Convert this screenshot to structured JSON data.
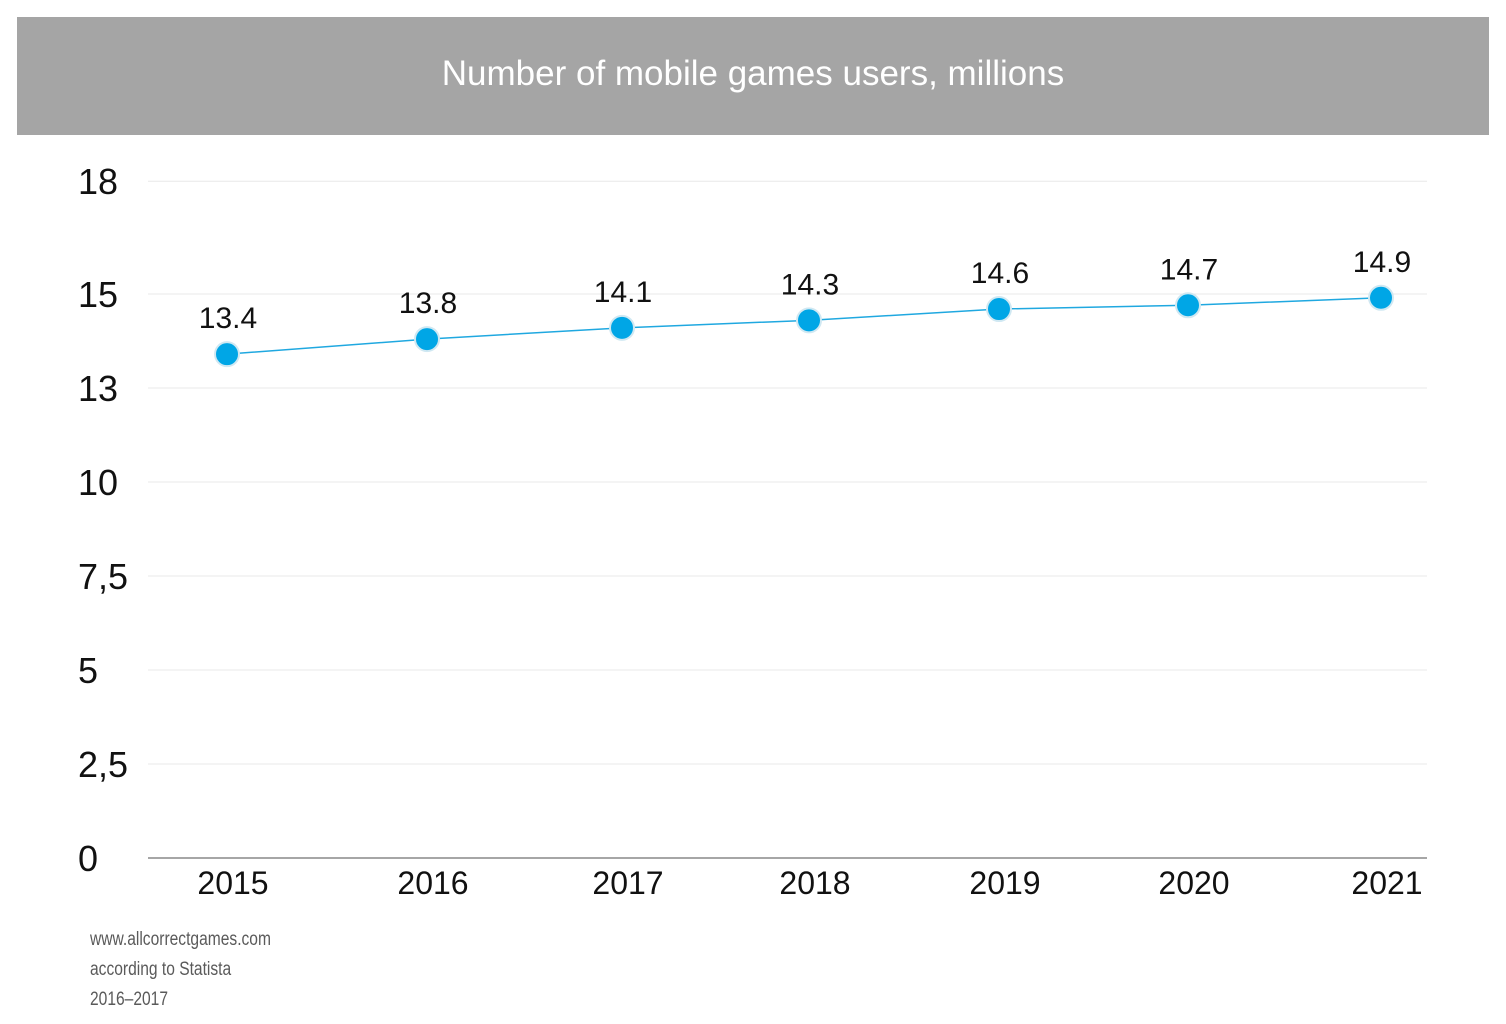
{
  "chart_data": {
    "type": "line",
    "title": "Number of mobile games users, millions",
    "xlabel": "",
    "ylabel": "",
    "categories": [
      "2015",
      "2016",
      "2017",
      "2018",
      "2019",
      "2020",
      "2021"
    ],
    "series": [
      {
        "values": [
          13.4,
          13.8,
          14.1,
          14.3,
          14.6,
          14.7,
          14.9
        ],
        "labels": [
          "13.4",
          "13.8",
          "14.1",
          "14.3",
          "14.6",
          "14.7",
          "14.9"
        ]
      }
    ],
    "y_ticks": [
      {
        "value": 18,
        "label": "18"
      },
      {
        "value": 15,
        "label": "15"
      },
      {
        "value": 12.5,
        "label": "13"
      },
      {
        "value": 10,
        "label": "10"
      },
      {
        "value": 7.5,
        "label": "7,5"
      },
      {
        "value": 5,
        "label": "5"
      },
      {
        "value": 2.5,
        "label": "2,5"
      },
      {
        "value": 0,
        "label": "0"
      }
    ],
    "ylim": [
      0,
      17.5
    ],
    "grid": true,
    "colors": {
      "line": "#1fa8e0",
      "marker": "#00a6e6",
      "title_bar": "#a5a5a5",
      "grid": "#e8e8e8",
      "axis": "#888888"
    }
  },
  "source": {
    "line1": "www.allcorrectgames.com",
    "line2": "according to Statista",
    "line3": "2016–2017"
  }
}
